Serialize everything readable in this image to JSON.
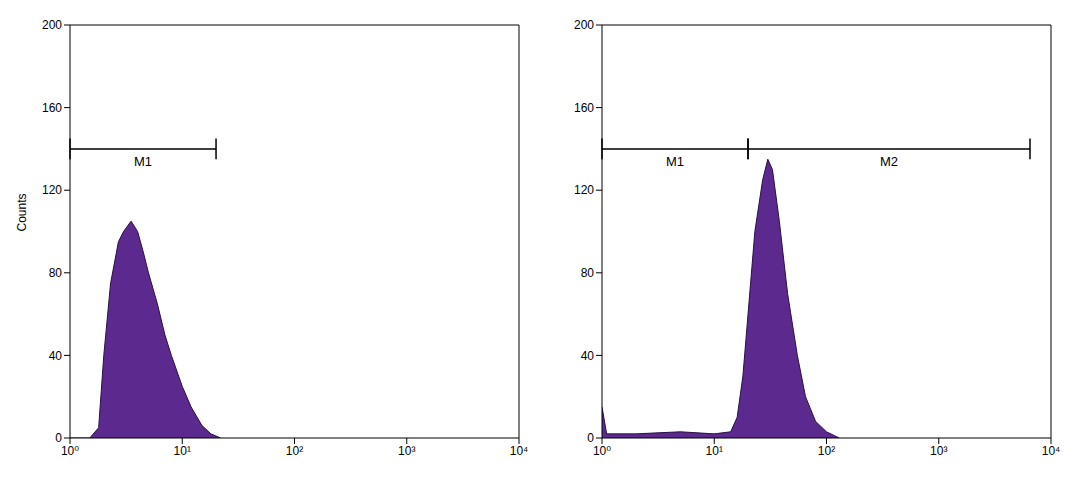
{
  "chart_data": [
    {
      "type": "area",
      "y_label": "Counts",
      "color": "#5c2a8f",
      "log": "x",
      "x": [
        1,
        1.5,
        1.8,
        2.0,
        2.3,
        2.7,
        3.0,
        3.5,
        4.0,
        4.5,
        5,
        6,
        7,
        8,
        10,
        12,
        15,
        18,
        22
      ],
      "values": [
        0,
        0,
        5,
        40,
        75,
        95,
        100,
        105,
        100,
        90,
        80,
        65,
        50,
        40,
        25,
        15,
        6,
        2,
        0
      ],
      "xlim": [
        1,
        10000
      ],
      "xticks": [
        {
          "value": 1,
          "label": "10⁰"
        },
        {
          "value": 10,
          "label": "10¹"
        },
        {
          "value": 100,
          "label": "10²"
        },
        {
          "value": 1000,
          "label": "10³"
        },
        {
          "value": 10000,
          "label": "10⁴"
        }
      ],
      "ylim": [
        0,
        200
      ],
      "yticks": [
        0,
        40,
        80,
        120,
        160,
        200
      ],
      "annotations": [
        {
          "text": "M1",
          "x": [
            1,
            20
          ],
          "y": 140
        }
      ]
    },
    {
      "type": "area",
      "color": "#5c2a8f",
      "log": "x",
      "x": [
        1,
        1.1,
        2,
        5,
        10,
        14,
        16,
        18,
        20,
        23,
        27,
        30,
        33,
        38,
        45,
        55,
        65,
        80,
        100,
        130
      ],
      "values": [
        15,
        2,
        2,
        3,
        2,
        3,
        10,
        30,
        60,
        100,
        125,
        135,
        130,
        105,
        70,
        40,
        20,
        8,
        3,
        0
      ],
      "xlim": [
        1,
        10000
      ],
      "xticks": [
        {
          "value": 1,
          "label": "10⁰"
        },
        {
          "value": 10,
          "label": "10¹"
        },
        {
          "value": 100,
          "label": "10²"
        },
        {
          "value": 1000,
          "label": "10³"
        },
        {
          "value": 10000,
          "label": "10⁴"
        }
      ],
      "ylim": [
        0,
        200
      ],
      "yticks": [
        0,
        40,
        80,
        120,
        160,
        200
      ],
      "annotations": [
        {
          "text": "M1",
          "x": [
            1,
            20
          ],
          "y": 140
        },
        {
          "text": "M2",
          "x": [
            20,
            6500
          ],
          "y": 140
        }
      ]
    }
  ]
}
